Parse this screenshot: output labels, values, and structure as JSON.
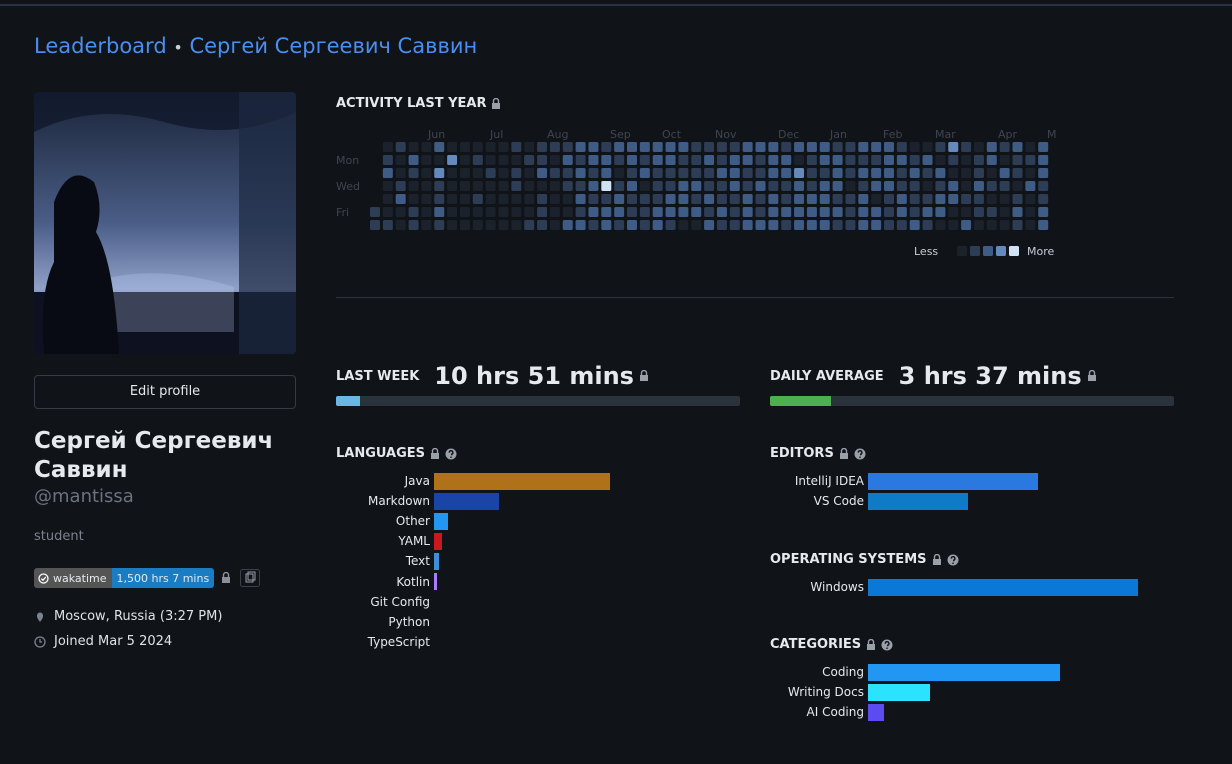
{
  "breadcrumb": {
    "link": "Leaderboard",
    "separator": "•",
    "current": "Сергей Сергеевич Саввин"
  },
  "profile": {
    "edit_button": "Edit profile",
    "name": "Сергей Сергеевич Саввин",
    "username": "@mantissa",
    "bio": "student",
    "badge": {
      "label": "wakatime",
      "value": "1,500 hrs 7 mins"
    },
    "location": "Moscow, Russia (3:27 PM)",
    "joined": "Joined Mar 5 2024"
  },
  "activity": {
    "title": "ACTIVITY LAST YEAR",
    "months": [
      "Jun",
      "Jul",
      "Aug",
      "Sep",
      "Oct",
      "Nov",
      "Dec",
      "Jan",
      "Feb",
      "Mar",
      "Apr",
      "M"
    ],
    "days": [
      "Mon",
      "Wed",
      "Fri"
    ],
    "legend": {
      "less": "Less",
      "more": "More",
      "levels": [
        0,
        1,
        2,
        3,
        4
      ]
    },
    "colors": [
      "#1b222c",
      "#2c3d55",
      "#3e5c86",
      "#6389bd",
      "#d2e2f5"
    ],
    "levels": [
      [
        null,
        0,
        1,
        0,
        0,
        2,
        0,
        0,
        0,
        0,
        0,
        1,
        0,
        1,
        1,
        1,
        2,
        2,
        1,
        2,
        2,
        2,
        2,
        2,
        2,
        1,
        1,
        1,
        1,
        2,
        2,
        2,
        1,
        2,
        2,
        2,
        1,
        1,
        2,
        2,
        2,
        1,
        0,
        0,
        1,
        3,
        1,
        0,
        2,
        1,
        2,
        0,
        2
      ],
      [
        null,
        1,
        0,
        2,
        0,
        0,
        3,
        0,
        1,
        0,
        0,
        0,
        1,
        1,
        0,
        2,
        1,
        2,
        2,
        1,
        2,
        1,
        2,
        2,
        1,
        1,
        2,
        1,
        2,
        2,
        1,
        2,
        2,
        0,
        1,
        2,
        2,
        1,
        1,
        1,
        2,
        2,
        1,
        2,
        0,
        1,
        0,
        1,
        2,
        0,
        1,
        1,
        2
      ],
      [
        null,
        2,
        0,
        1,
        0,
        3,
        0,
        0,
        0,
        1,
        0,
        1,
        0,
        2,
        1,
        1,
        2,
        1,
        2,
        0,
        1,
        2,
        1,
        1,
        1,
        1,
        1,
        2,
        2,
        1,
        1,
        2,
        2,
        3,
        1,
        1,
        2,
        1,
        2,
        2,
        2,
        1,
        2,
        1,
        2,
        0,
        0,
        1,
        0,
        2,
        1,
        0,
        2
      ],
      [
        null,
        0,
        1,
        0,
        0,
        1,
        0,
        0,
        0,
        0,
        0,
        1,
        0,
        0,
        0,
        1,
        1,
        2,
        4,
        1,
        2,
        0,
        1,
        1,
        2,
        2,
        1,
        1,
        2,
        1,
        2,
        1,
        1,
        2,
        1,
        2,
        2,
        0,
        1,
        2,
        2,
        1,
        1,
        0,
        1,
        2,
        0,
        2,
        1,
        1,
        0,
        2,
        1
      ],
      [
        null,
        0,
        2,
        0,
        0,
        1,
        0,
        0,
        1,
        0,
        0,
        0,
        0,
        1,
        0,
        0,
        2,
        1,
        1,
        2,
        1,
        1,
        1,
        2,
        2,
        1,
        2,
        1,
        1,
        2,
        1,
        2,
        1,
        2,
        2,
        2,
        1,
        1,
        2,
        0,
        1,
        2,
        1,
        1,
        2,
        2,
        1,
        1,
        0,
        0,
        1,
        0,
        1
      ],
      [
        1,
        0,
        0,
        1,
        0,
        2,
        0,
        0,
        0,
        0,
        0,
        0,
        0,
        1,
        0,
        0,
        1,
        2,
        2,
        2,
        1,
        1,
        2,
        2,
        2,
        2,
        1,
        2,
        1,
        2,
        1,
        2,
        2,
        2,
        2,
        2,
        2,
        1,
        2,
        2,
        1,
        2,
        1,
        2,
        2,
        0,
        0,
        1,
        1,
        0,
        2,
        0,
        2
      ],
      [
        1,
        1,
        0,
        1,
        0,
        1,
        0,
        0,
        0,
        0,
        0,
        0,
        1,
        1,
        0,
        2,
        2,
        1,
        2,
        1,
        2,
        1,
        2,
        1,
        0,
        0,
        2,
        1,
        1,
        2,
        2,
        2,
        1,
        2,
        2,
        2,
        1,
        1,
        2,
        2,
        1,
        1,
        2,
        1,
        0,
        0,
        2,
        0,
        0,
        0,
        1,
        0,
        2
      ]
    ]
  },
  "last_week": {
    "label": "LAST WEEK",
    "value": "10 hrs 51 mins",
    "progress": 6,
    "color": "#6ab7e6"
  },
  "daily_average": {
    "label": "DAILY AVERAGE",
    "value": "3 hrs 37 mins",
    "progress": 15,
    "color": "#4caf50"
  },
  "languages": {
    "title": "LANGUAGES",
    "items": [
      {
        "name": "Java",
        "value": 65,
        "color": "#b07219"
      },
      {
        "name": "Markdown",
        "value": 24,
        "color": "#1a44a8"
      },
      {
        "name": "Other",
        "value": 5,
        "color": "#2196f3"
      },
      {
        "name": "YAML",
        "value": 3,
        "color": "#cb171e"
      },
      {
        "name": "Text",
        "value": 2,
        "color": "#3f8fd6"
      },
      {
        "name": "Kotlin",
        "value": 1,
        "color": "#a97bff"
      },
      {
        "name": "Git Config",
        "value": 0,
        "color": "#f44d27"
      },
      {
        "name": "Python",
        "value": 0,
        "color": "#3572a5"
      },
      {
        "name": "TypeScript",
        "value": 0,
        "color": "#2b7489"
      }
    ]
  },
  "editors": {
    "title": "EDITORS",
    "items": [
      {
        "name": "IntelliJ IDEA",
        "value": 63,
        "color": "#2a78e0"
      },
      {
        "name": "VS Code",
        "value": 37,
        "color": "#0f7bc7"
      }
    ]
  },
  "operating_systems": {
    "title": "OPERATING SYSTEMS",
    "items": [
      {
        "name": "Windows",
        "value": 100,
        "color": "#0a78d4"
      }
    ]
  },
  "categories": {
    "title": "CATEGORIES",
    "items": [
      {
        "name": "Coding",
        "value": 71,
        "color": "#2196f3"
      },
      {
        "name": "Writing Docs",
        "value": 23,
        "color": "#2be3ff"
      },
      {
        "name": "AI Coding",
        "value": 6,
        "color": "#5b4bf0"
      }
    ]
  }
}
